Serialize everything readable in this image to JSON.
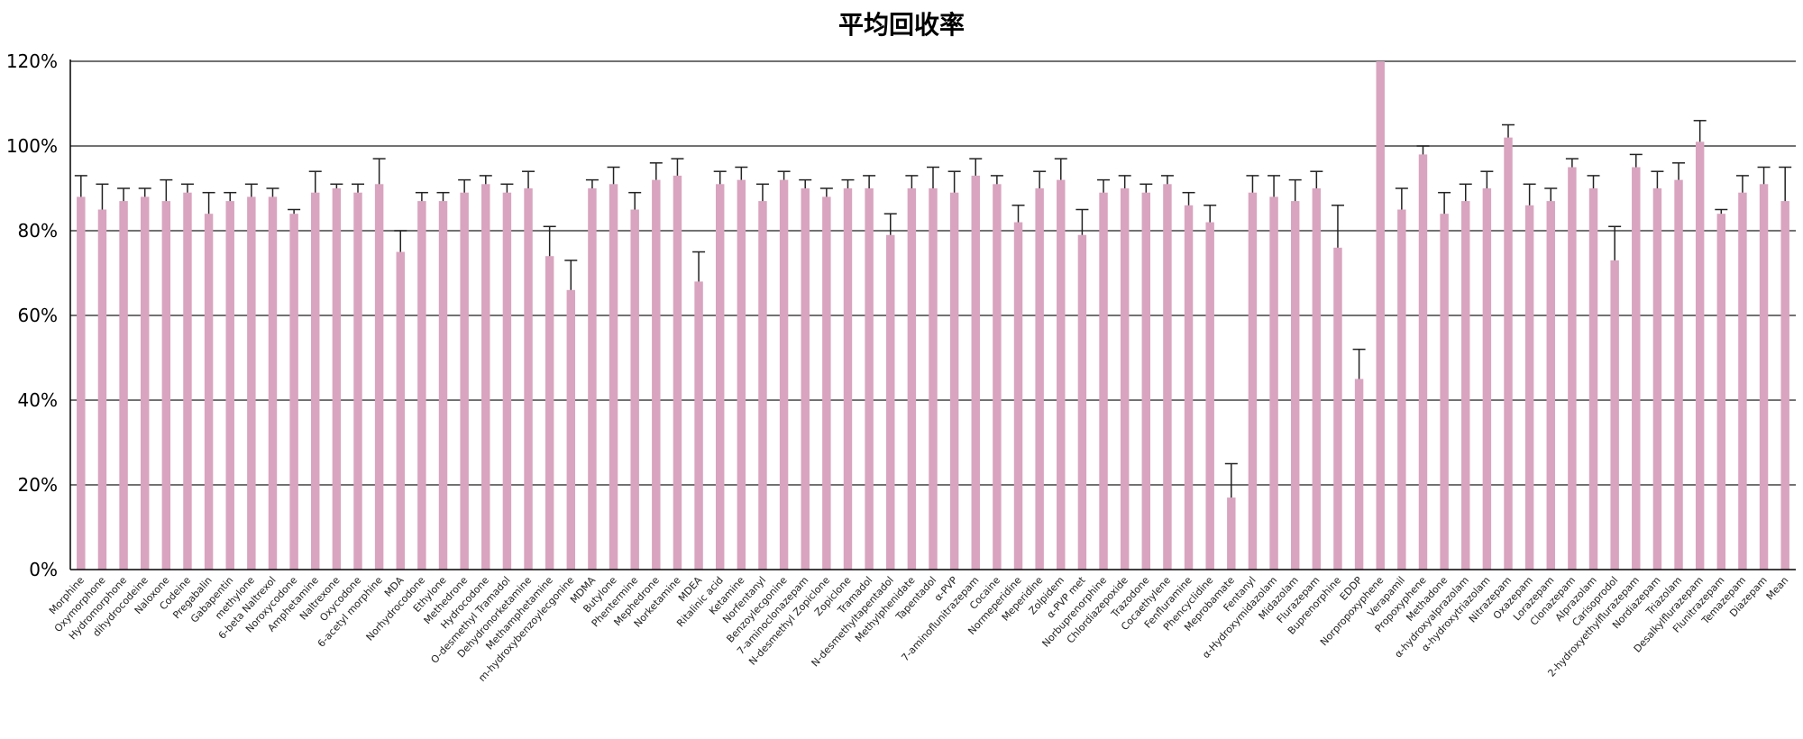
{
  "chart_data": {
    "type": "bar",
    "title": "平均回收率",
    "xlabel": "",
    "ylabel": "",
    "ylim": [
      0,
      120
    ],
    "yticks": [
      "0%",
      "20%",
      "40%",
      "60%",
      "80%",
      "100%",
      "120%"
    ],
    "grid": true,
    "legend": "none",
    "bar_color": "#d9a4bf",
    "error_color": "#222222",
    "categories": [
      "Morphine",
      "Oxymorphone",
      "Hydromorphone",
      "dihydrocodeine",
      "Naloxone",
      "Codeine",
      "Pregabalin",
      "Gabapentin",
      "methylone",
      "6-beta Naltrexol",
      "Noroxycodone",
      "Amphetamine",
      "Naltrexone",
      "Oxycodone",
      "6-acetyl morphine",
      "MDA",
      "Norhydrocodone",
      "Ethylone",
      "Methedrone",
      "Hydrocodone",
      "O-desmethyl Tramadol",
      "Dehydronorketamine",
      "Methamphetamine",
      "m-hydroxybenzoylecgonine",
      "MDMA",
      "Butylone",
      "Phentermine",
      "Mephedrone",
      "Norketamine",
      "MDEA",
      "Ritalinic acid",
      "Ketamine",
      "Norfentanyl",
      "Benzoylecgonine",
      "7-aminoclonazepam",
      "N-desmethyl Zopiclone",
      "Zopiclone",
      "Tramadol",
      "N-desmethyltapentadol",
      "Methylphenidate",
      "Tapentadol",
      "α-PVP",
      "7-aminoflunitrazepam",
      "Cocaine",
      "Normeperidine",
      "Meperidine",
      "Zolpidem",
      "α-PVP met",
      "Norbuprenorphine",
      "Chlordiazepoxide",
      "Trazodone",
      "Cocaethylene",
      "Fenfluramine",
      "Phencyclidine",
      "Meprobamate",
      "Fentanyl",
      "α-Hydroxymidazolam",
      "Midazolam",
      "Flurazepam",
      "Buprenorphine",
      "EDDP",
      "Norpropoxyphene",
      "Verapamil",
      "Propoxyphene",
      "Methadone",
      "α-hydroxyalprazolam",
      "α-hydroxytriazolam",
      "Nitrazepam",
      "Oxazepam",
      "Lorazepam",
      "Clonazepam",
      "Alprazolam",
      "Carisoprodol",
      "2-hydroxyethylflurazepam",
      "Nordiazepam",
      "Triazolam",
      "Desalkylflurazepam",
      "Flunitrazepam",
      "Temazepam",
      "Diazepam",
      "Mean"
    ],
    "values": [
      88,
      85,
      87,
      88,
      87,
      89,
      84,
      87,
      88,
      88,
      84,
      89,
      90,
      89,
      91,
      75,
      87,
      87,
      89,
      91,
      89,
      90,
      74,
      66,
      90,
      91,
      85,
      92,
      93,
      68,
      91,
      92,
      87,
      92,
      90,
      88,
      90,
      90,
      79,
      90,
      90,
      89,
      93,
      91,
      82,
      90,
      92,
      79,
      89,
      90,
      89,
      91,
      86,
      82,
      17,
      89,
      88,
      87,
      90,
      76,
      45,
      120,
      85,
      98,
      84,
      87,
      90,
      102,
      86,
      87,
      95,
      90,
      73,
      95,
      90,
      92,
      101,
      84,
      89,
      91,
      87
    ],
    "errors": [
      5,
      6,
      3,
      2,
      5,
      2,
      5,
      2,
      3,
      2,
      1,
      5,
      1,
      2,
      6,
      5,
      2,
      2,
      3,
      2,
      2,
      4,
      7,
      7,
      2,
      4,
      4,
      4,
      4,
      7,
      3,
      3,
      4,
      2,
      2,
      2,
      2,
      3,
      5,
      3,
      5,
      5,
      4,
      2,
      4,
      4,
      5,
      6,
      3,
      3,
      2,
      2,
      3,
      4,
      8,
      4,
      5,
      5,
      4,
      10,
      7,
      0,
      5,
      2,
      5,
      4,
      4,
      3,
      5,
      3,
      2,
      3,
      8,
      3,
      4,
      4,
      5,
      1,
      4,
      4,
      8
    ]
  }
}
